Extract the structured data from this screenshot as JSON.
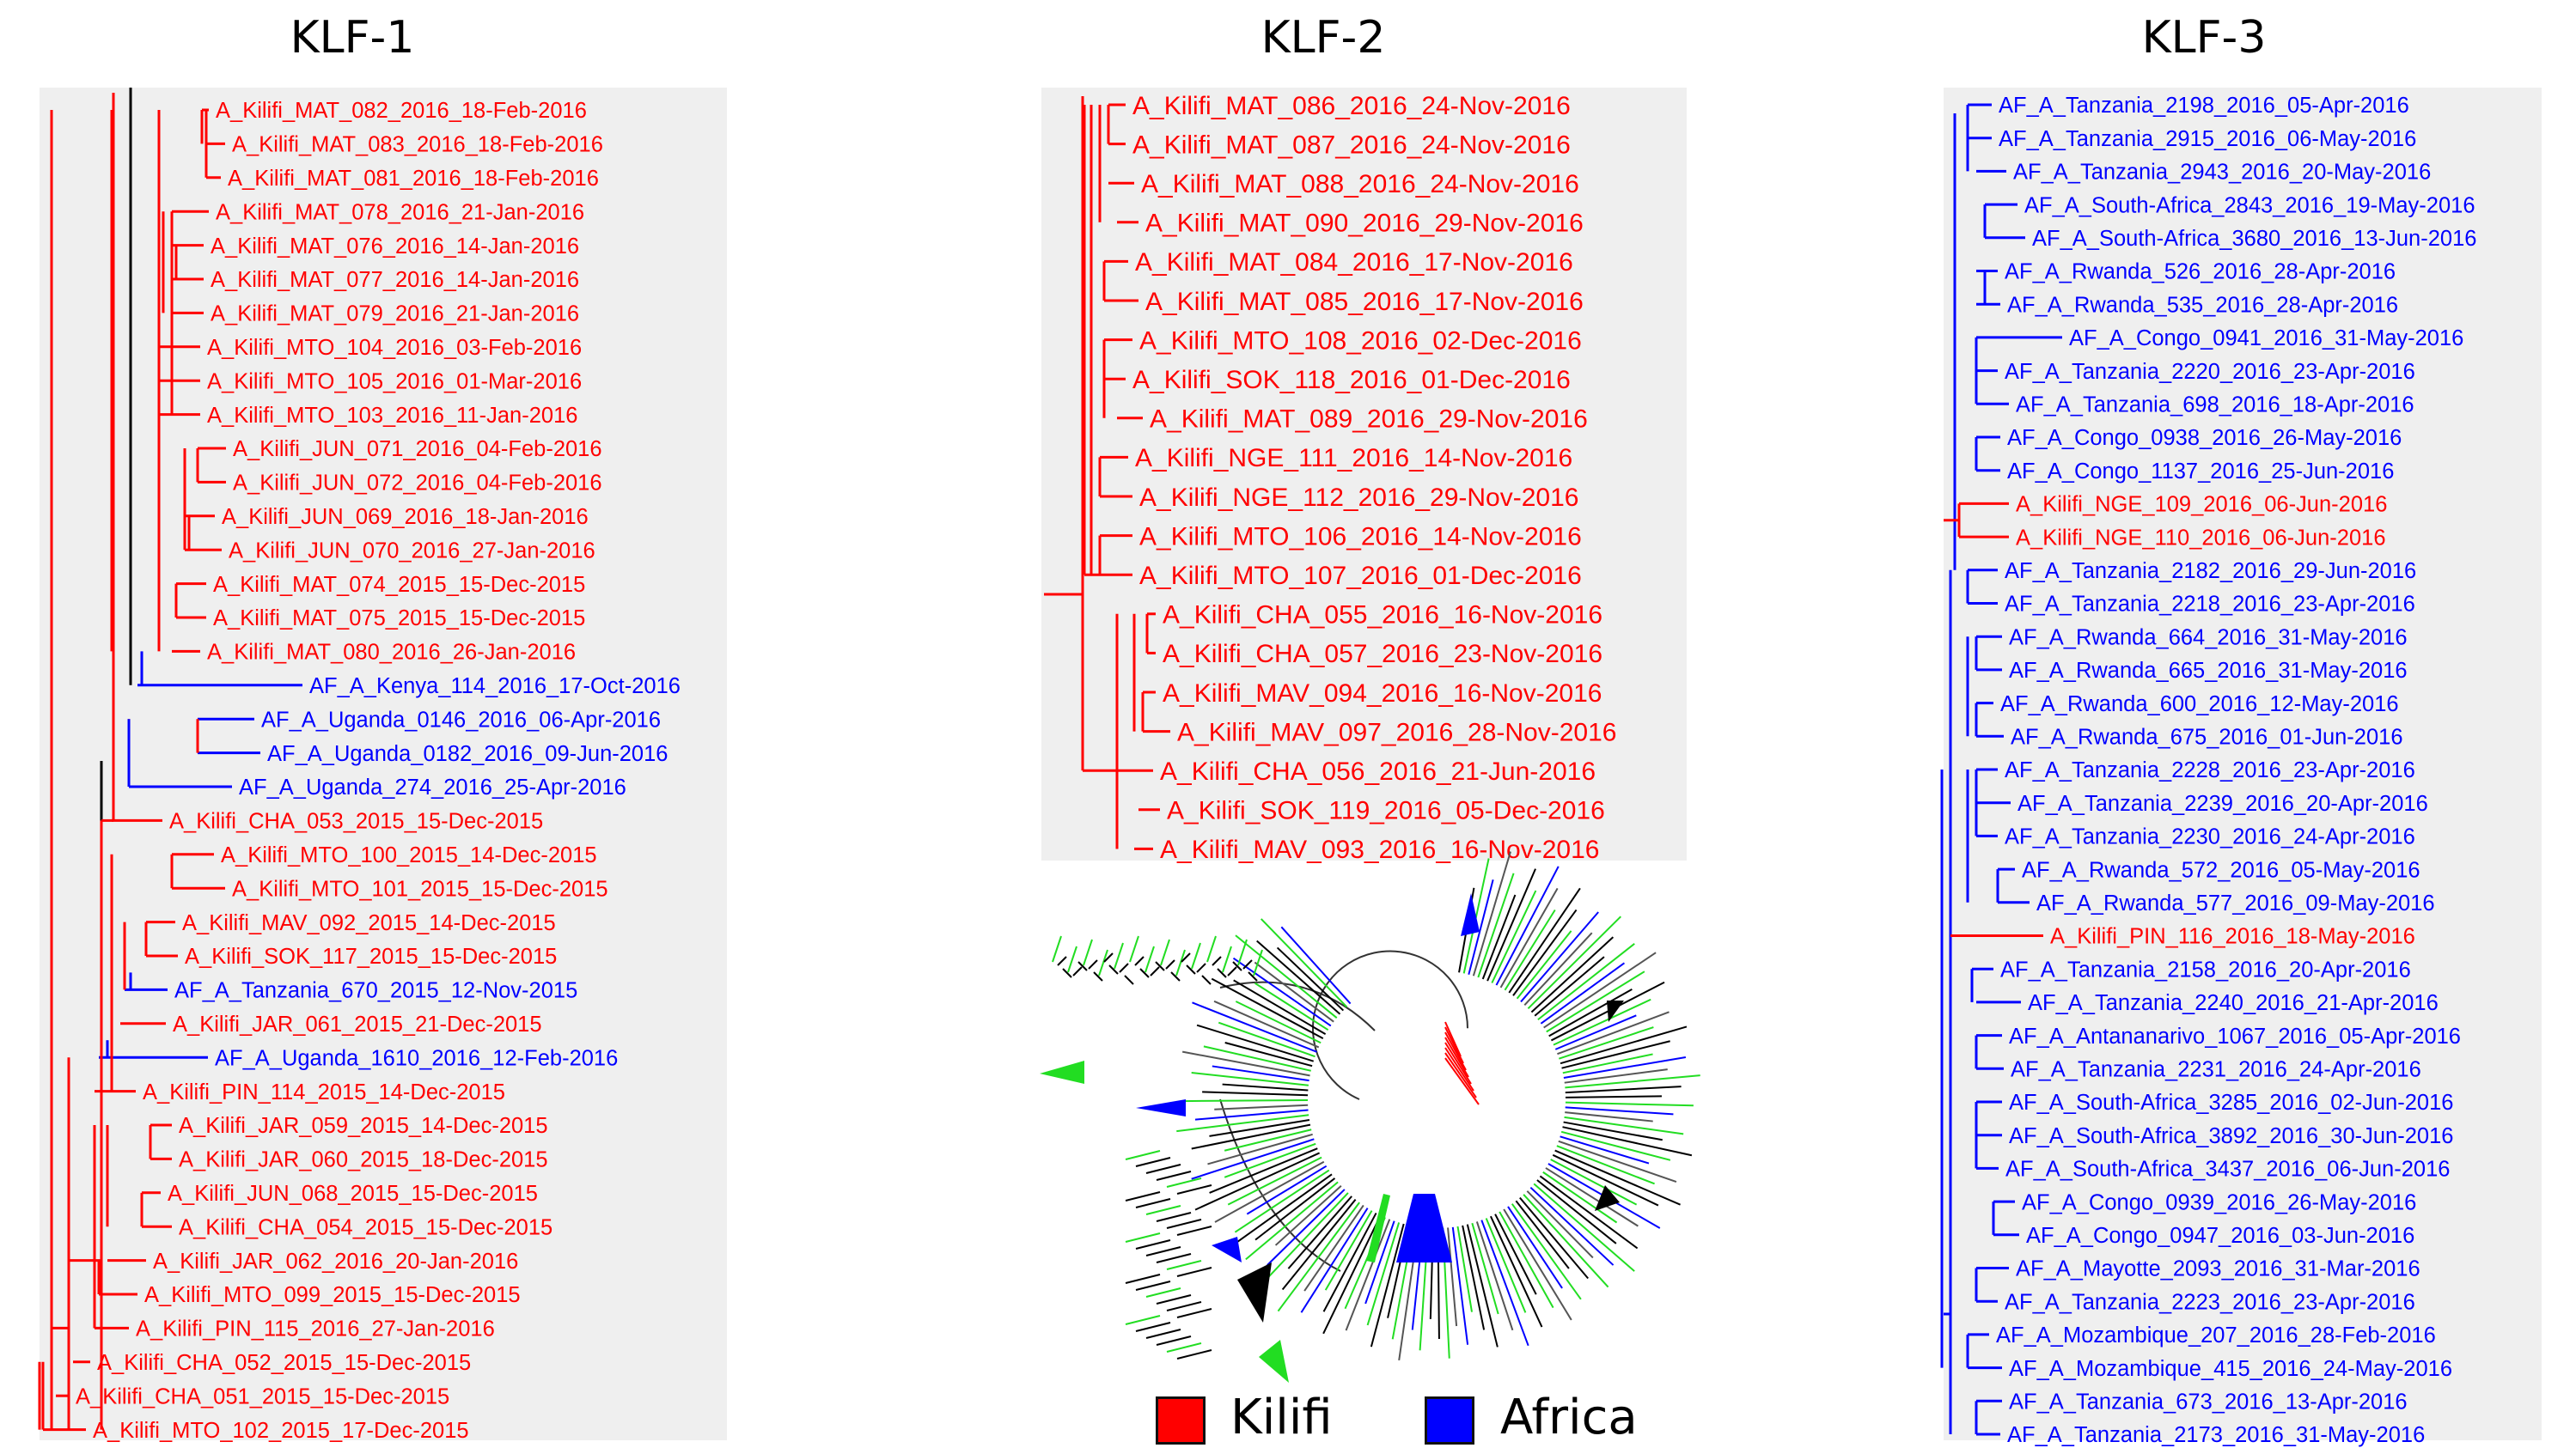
{
  "colors": {
    "kilifi": "#ff0000",
    "africa": "#0000ff",
    "panel_bg": "#efefef",
    "trunk": "#000000",
    "green": "#22dd22"
  },
  "panels": [
    {
      "title": "KLF-1",
      "leaves": [
        {
          "label": "A_Kilifi_MAT_082_2016_18-Feb-2016",
          "group": "kilifi"
        },
        {
          "label": "A_Kilifi_MAT_083_2016_18-Feb-2016",
          "group": "kilifi"
        },
        {
          "label": "A_Kilifi_MAT_081_2016_18-Feb-2016",
          "group": "kilifi"
        },
        {
          "label": "A_Kilifi_MAT_078_2016_21-Jan-2016",
          "group": "kilifi"
        },
        {
          "label": "A_Kilifi_MAT_076_2016_14-Jan-2016",
          "group": "kilifi"
        },
        {
          "label": "A_Kilifi_MAT_077_2016_14-Jan-2016",
          "group": "kilifi"
        },
        {
          "label": "A_Kilifi_MAT_079_2016_21-Jan-2016",
          "group": "kilifi"
        },
        {
          "label": "A_Kilifi_MTO_104_2016_03-Feb-2016",
          "group": "kilifi"
        },
        {
          "label": "A_Kilifi_MTO_105_2016_01-Mar-2016",
          "group": "kilifi"
        },
        {
          "label": "A_Kilifi_MTO_103_2016_11-Jan-2016",
          "group": "kilifi"
        },
        {
          "label": "A_Kilifi_JUN_071_2016_04-Feb-2016",
          "group": "kilifi"
        },
        {
          "label": "A_Kilifi_JUN_072_2016_04-Feb-2016",
          "group": "kilifi"
        },
        {
          "label": "A_Kilifi_JUN_069_2016_18-Jan-2016",
          "group": "kilifi"
        },
        {
          "label": "A_Kilifi_JUN_070_2016_27-Jan-2016",
          "group": "kilifi"
        },
        {
          "label": "A_Kilifi_MAT_074_2015_15-Dec-2015",
          "group": "kilifi"
        },
        {
          "label": "A_Kilifi_MAT_075_2015_15-Dec-2015",
          "group": "kilifi"
        },
        {
          "label": "A_Kilifi_MAT_080_2016_26-Jan-2016",
          "group": "kilifi"
        },
        {
          "label": "AF_A_Kenya_114_2016_17-Oct-2016",
          "group": "africa"
        },
        {
          "label": "AF_A_Uganda_0146_2016_06-Apr-2016",
          "group": "africa"
        },
        {
          "label": "AF_A_Uganda_0182_2016_09-Jun-2016",
          "group": "africa"
        },
        {
          "label": "AF_A_Uganda_274_2016_25-Apr-2016",
          "group": "africa"
        },
        {
          "label": "A_Kilifi_CHA_053_2015_15-Dec-2015",
          "group": "kilifi"
        },
        {
          "label": "A_Kilifi_MTO_100_2015_14-Dec-2015",
          "group": "kilifi"
        },
        {
          "label": "A_Kilifi_MTO_101_2015_15-Dec-2015",
          "group": "kilifi"
        },
        {
          "label": "A_Kilifi_MAV_092_2015_14-Dec-2015",
          "group": "kilifi"
        },
        {
          "label": "A_Kilifi_SOK_117_2015_15-Dec-2015",
          "group": "kilifi"
        },
        {
          "label": "AF_A_Tanzania_670_2015_12-Nov-2015",
          "group": "africa"
        },
        {
          "label": "A_Kilifi_JAR_061_2015_21-Dec-2015",
          "group": "kilifi"
        },
        {
          "label": "AF_A_Uganda_1610_2016_12-Feb-2016",
          "group": "africa"
        },
        {
          "label": "A_Kilifi_PIN_114_2015_14-Dec-2015",
          "group": "kilifi"
        },
        {
          "label": "A_Kilifi_JAR_059_2015_14-Dec-2015",
          "group": "kilifi"
        },
        {
          "label": "A_Kilifi_JAR_060_2015_18-Dec-2015",
          "group": "kilifi"
        },
        {
          "label": "A_Kilifi_JUN_068_2015_15-Dec-2015",
          "group": "kilifi"
        },
        {
          "label": "A_Kilifi_CHA_054_2015_15-Dec-2015",
          "group": "kilifi"
        },
        {
          "label": "A_Kilifi_JAR_062_2016_20-Jan-2016",
          "group": "kilifi"
        },
        {
          "label": "A_Kilifi_MTO_099_2015_15-Dec-2015",
          "group": "kilifi"
        },
        {
          "label": "A_Kilifi_PIN_115_2016_27-Jan-2016",
          "group": "kilifi"
        },
        {
          "label": "A_Kilifi_CHA_052_2015_15-Dec-2015",
          "group": "kilifi"
        },
        {
          "label": "A_Kilifi_CHA_051_2015_15-Dec-2015",
          "group": "kilifi"
        },
        {
          "label": "A_Kilifi_MTO_102_2015_17-Dec-2015",
          "group": "kilifi"
        }
      ]
    },
    {
      "title": "KLF-2",
      "leaves": [
        {
          "label": "A_Kilifi_MAT_086_2016_24-Nov-2016",
          "group": "kilifi"
        },
        {
          "label": "A_Kilifi_MAT_087_2016_24-Nov-2016",
          "group": "kilifi"
        },
        {
          "label": "A_Kilifi_MAT_088_2016_24-Nov-2016",
          "group": "kilifi"
        },
        {
          "label": "A_Kilifi_MAT_090_2016_29-Nov-2016",
          "group": "kilifi"
        },
        {
          "label": "A_Kilifi_MAT_084_2016_17-Nov-2016",
          "group": "kilifi"
        },
        {
          "label": "A_Kilifi_MAT_085_2016_17-Nov-2016",
          "group": "kilifi"
        },
        {
          "label": "A_Kilifi_MTO_108_2016_02-Dec-2016",
          "group": "kilifi"
        },
        {
          "label": "A_Kilifi_SOK_118_2016_01-Dec-2016",
          "group": "kilifi"
        },
        {
          "label": "A_Kilifi_MAT_089_2016_29-Nov-2016",
          "group": "kilifi"
        },
        {
          "label": "A_Kilifi_NGE_111_2016_14-Nov-2016",
          "group": "kilifi"
        },
        {
          "label": "A_Kilifi_NGE_112_2016_29-Nov-2016",
          "group": "kilifi"
        },
        {
          "label": "A_Kilifi_MTO_106_2016_14-Nov-2016",
          "group": "kilifi"
        },
        {
          "label": "A_Kilifi_MTO_107_2016_01-Dec-2016",
          "group": "kilifi"
        },
        {
          "label": "A_Kilifi_CHA_055_2016_16-Nov-2016",
          "group": "kilifi"
        },
        {
          "label": "A_Kilifi_CHA_057_2016_23-Nov-2016",
          "group": "kilifi"
        },
        {
          "label": "A_Kilifi_MAV_094_2016_16-Nov-2016",
          "group": "kilifi"
        },
        {
          "label": "A_Kilifi_MAV_097_2016_28-Nov-2016",
          "group": "kilifi"
        },
        {
          "label": "A_Kilifi_CHA_056_2016_21-Jun-2016",
          "group": "kilifi"
        },
        {
          "label": "A_Kilifi_SOK_119_2016_05-Dec-2016",
          "group": "kilifi"
        },
        {
          "label": "A_Kilifi_MAV_093_2016_16-Nov-2016",
          "group": "kilifi"
        }
      ]
    },
    {
      "title": "KLF-3",
      "leaves": [
        {
          "label": "AF_A_Tanzania_2198_2016_05-Apr-2016",
          "group": "africa"
        },
        {
          "label": "AF_A_Tanzania_2915_2016_06-May-2016",
          "group": "africa"
        },
        {
          "label": "AF_A_Tanzania_2943_2016_20-May-2016",
          "group": "africa"
        },
        {
          "label": "AF_A_South-Africa_2843_2016_19-May-2016",
          "group": "africa"
        },
        {
          "label": "AF_A_South-Africa_3680_2016_13-Jun-2016",
          "group": "africa"
        },
        {
          "label": "AF_A_Rwanda_526_2016_28-Apr-2016",
          "group": "africa"
        },
        {
          "label": "AF_A_Rwanda_535_2016_28-Apr-2016",
          "group": "africa"
        },
        {
          "label": "AF_A_Congo_0941_2016_31-May-2016",
          "group": "africa"
        },
        {
          "label": "AF_A_Tanzania_2220_2016_23-Apr-2016",
          "group": "africa"
        },
        {
          "label": "AF_A_Tanzania_698_2016_18-Apr-2016",
          "group": "africa"
        },
        {
          "label": "AF_A_Congo_0938_2016_26-May-2016",
          "group": "africa"
        },
        {
          "label": "AF_A_Congo_1137_2016_25-Jun-2016",
          "group": "africa"
        },
        {
          "label": "A_Kilifi_NGE_109_2016_06-Jun-2016",
          "group": "kilifi"
        },
        {
          "label": "A_Kilifi_NGE_110_2016_06-Jun-2016",
          "group": "kilifi"
        },
        {
          "label": "AF_A_Tanzania_2182_2016_29-Jun-2016",
          "group": "africa"
        },
        {
          "label": "AF_A_Tanzania_2218_2016_23-Apr-2016",
          "group": "africa"
        },
        {
          "label": "AF_A_Rwanda_664_2016_31-May-2016",
          "group": "africa"
        },
        {
          "label": "AF_A_Rwanda_665_2016_31-May-2016",
          "group": "africa"
        },
        {
          "label": "AF_A_Rwanda_600_2016_12-May-2016",
          "group": "africa"
        },
        {
          "label": "AF_A_Rwanda_675_2016_01-Jun-2016",
          "group": "africa"
        },
        {
          "label": "AF_A_Tanzania_2228_2016_23-Apr-2016",
          "group": "africa"
        },
        {
          "label": "AF_A_Tanzania_2239_2016_20-Apr-2016",
          "group": "africa"
        },
        {
          "label": "AF_A_Tanzania_2230_2016_24-Apr-2016",
          "group": "africa"
        },
        {
          "label": "AF_A_Rwanda_572_2016_05-May-2016",
          "group": "africa"
        },
        {
          "label": "AF_A_Rwanda_577_2016_09-May-2016",
          "group": "africa"
        },
        {
          "label": "A_Kilifi_PIN_116_2016_18-May-2016",
          "group": "kilifi"
        },
        {
          "label": "AF_A_Tanzania_2158_2016_20-Apr-2016",
          "group": "africa"
        },
        {
          "label": "AF_A_Tanzania_2240_2016_21-Apr-2016",
          "group": "africa"
        },
        {
          "label": "AF_A_Antananarivo_1067_2016_05-Apr-2016",
          "group": "africa"
        },
        {
          "label": "AF_A_Tanzania_2231_2016_24-Apr-2016",
          "group": "africa"
        },
        {
          "label": "AF_A_South-Africa_3285_2016_02-Jun-2016",
          "group": "africa"
        },
        {
          "label": "AF_A_South-Africa_3892_2016_30-Jun-2016",
          "group": "africa"
        },
        {
          "label": "AF_A_South-Africa_3437_2016_06-Jun-2016",
          "group": "africa"
        },
        {
          "label": "AF_A_Congo_0939_2016_26-May-2016",
          "group": "africa"
        },
        {
          "label": "AF_A_Congo_0947_2016_03-Jun-2016",
          "group": "africa"
        },
        {
          "label": "AF_A_Mayotte_2093_2016_31-Mar-2016",
          "group": "africa"
        },
        {
          "label": "AF_A_Tanzania_2223_2016_23-Apr-2016",
          "group": "africa"
        },
        {
          "label": "AF_A_Mozambique_207_2016_28-Feb-2016",
          "group": "africa"
        },
        {
          "label": "AF_A_Mozambique_415_2016_24-May-2016",
          "group": "africa"
        },
        {
          "label": "AF_A_Tanzania_673_2016_13-Apr-2016",
          "group": "africa"
        },
        {
          "label": "AF_A_Tanzania_2173_2016_31-May-2016",
          "group": "africa"
        }
      ]
    }
  ],
  "legend": [
    {
      "label": "Kilifi",
      "color": "#ff0000"
    },
    {
      "label": "Africa",
      "color": "#0000ff"
    }
  ]
}
